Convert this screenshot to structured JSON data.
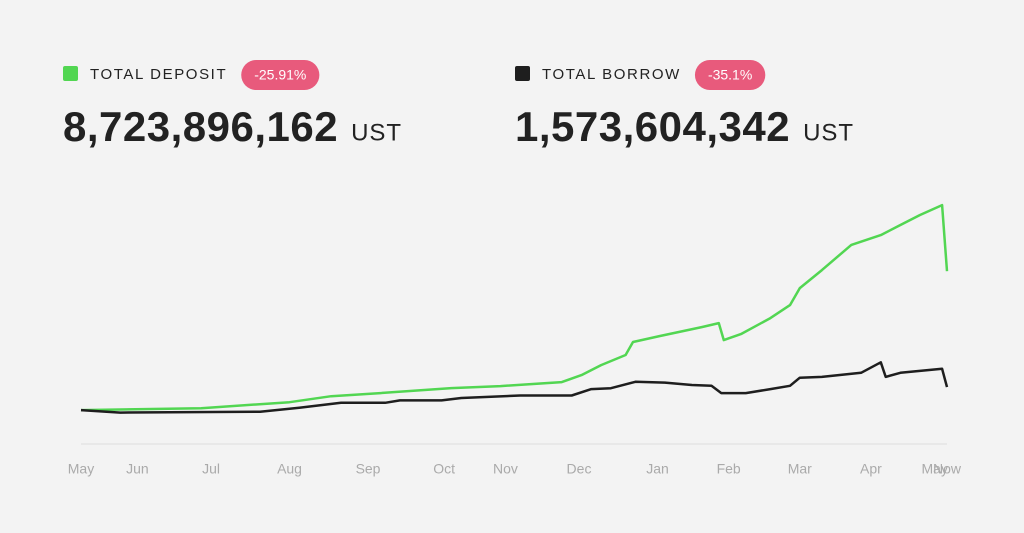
{
  "chart_data": {
    "type": "line",
    "xlim": [
      0,
      353
    ],
    "ylim": [
      -1.94,
      13.73
    ],
    "xticks": [
      {
        "value": 0,
        "label": "May"
      },
      {
        "value": 23,
        "label": "Jun"
      },
      {
        "value": 53,
        "label": "Jul"
      },
      {
        "value": 85,
        "label": "Aug"
      },
      {
        "value": 117,
        "label": "Sep"
      },
      {
        "value": 148,
        "label": "Oct"
      },
      {
        "value": 173,
        "label": "Nov"
      },
      {
        "value": 203,
        "label": "Dec"
      },
      {
        "value": 235,
        "label": "Jan"
      },
      {
        "value": 264,
        "label": "Feb"
      },
      {
        "value": 293,
        "label": "Mar"
      },
      {
        "value": 322,
        "label": "Apr"
      },
      {
        "value": 348,
        "label": "May"
      },
      {
        "value": 353,
        "label": "Now"
      }
    ],
    "series": [
      {
        "name": "TOTAL DEPOSIT",
        "color": "#52d652",
        "change": "-25.91%",
        "total": "8,723,896,162",
        "unit": "UST",
        "x": [
          0,
          49,
          85,
          102,
          122,
          151,
          171,
          196,
          204,
          212,
          222,
          225,
          236,
          253,
          260,
          262,
          269,
          281,
          289,
          293,
          302,
          314,
          326,
          334,
          342,
          351,
          353
        ],
        "values": [
          0.15,
          0.27,
          0.64,
          1.01,
          1.2,
          1.51,
          1.63,
          1.88,
          2.31,
          2.93,
          3.55,
          4.35,
          4.72,
          5.27,
          5.52,
          4.47,
          4.84,
          5.83,
          6.63,
          7.68,
          8.79,
          10.34,
          10.95,
          11.57,
          12.19,
          12.8,
          8.72
        ]
      },
      {
        "name": "TOTAL BORROW",
        "color": "#1e1e1e",
        "change": "-35.1%",
        "total": "1,573,604,342",
        "unit": "UST",
        "x": [
          0,
          16,
          73,
          89,
          106,
          124,
          130,
          147,
          155,
          179,
          200,
          208,
          216,
          226,
          238,
          249,
          257,
          261,
          271,
          281,
          289,
          293,
          302,
          318,
          326,
          328,
          334,
          351,
          353
        ],
        "values": [
          0.15,
          0.0,
          0.05,
          0.3,
          0.6,
          0.6,
          0.75,
          0.75,
          0.9,
          1.05,
          1.05,
          1.45,
          1.5,
          1.9,
          1.85,
          1.7,
          1.65,
          1.2,
          1.2,
          1.45,
          1.65,
          2.15,
          2.2,
          2.45,
          3.1,
          2.2,
          2.45,
          2.7,
          1.57
        ]
      }
    ]
  }
}
